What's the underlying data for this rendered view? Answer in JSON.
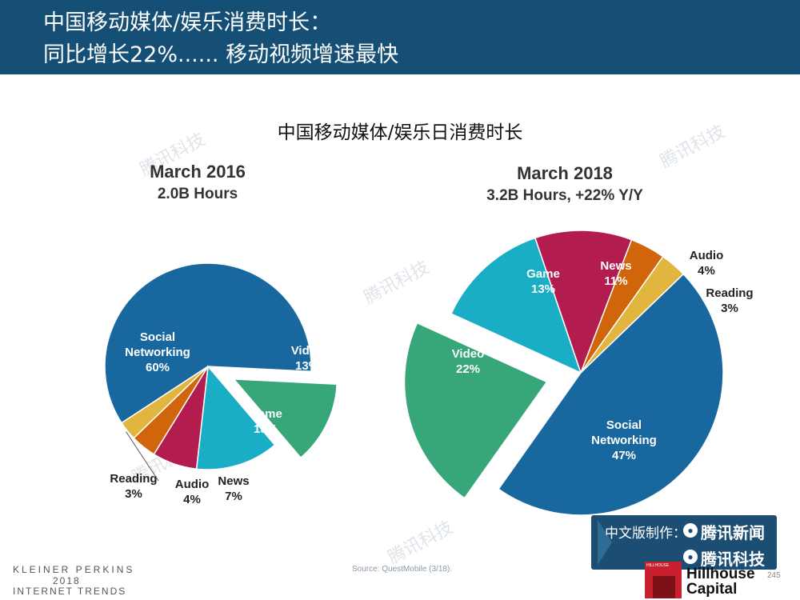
{
  "header": {
    "line1": "中国移动媒体/娱乐消费时长：",
    "line2": "同比增长22%...... 移动视频增速最快"
  },
  "chart_title": "中国移动媒体/娱乐日消费时长",
  "watermark": "腾讯科技",
  "chart_data": [
    {
      "type": "pie",
      "title": "March 2016",
      "subtitle": "2.0B Hours",
      "slices": [
        {
          "name": "Social Networking",
          "name_lines": [
            "Social",
            "Networking"
          ],
          "value": 60,
          "label": "60%",
          "color": "#18689f"
        },
        {
          "name": "Video",
          "name_lines": [
            "Video"
          ],
          "value": 13,
          "label": "13%",
          "color": "#37a678",
          "exploded": true
        },
        {
          "name": "Game",
          "name_lines": [
            "Game"
          ],
          "value": 13,
          "label": "13%",
          "color": "#1aaec6"
        },
        {
          "name": "News",
          "name_lines": [
            "News"
          ],
          "value": 7,
          "label": "7%",
          "color": "#b31c4e"
        },
        {
          "name": "Audio",
          "name_lines": [
            "Audio"
          ],
          "value": 4,
          "label": "4%",
          "color": "#d0650c"
        },
        {
          "name": "Reading",
          "name_lines": [
            "Reading"
          ],
          "value": 3,
          "label": "3%",
          "color": "#e2b53f"
        }
      ]
    },
    {
      "type": "pie",
      "title": "March 2018",
      "subtitle": "3.2B Hours, +22% Y/Y",
      "slices": [
        {
          "name": "Game",
          "name_lines": [
            "Game"
          ],
          "value": 13,
          "label": "13%",
          "color": "#1aaec6"
        },
        {
          "name": "News",
          "name_lines": [
            "News"
          ],
          "value": 11,
          "label": "11%",
          "color": "#b31c4e"
        },
        {
          "name": "Audio",
          "name_lines": [
            "Audio"
          ],
          "value": 4,
          "label": "4%",
          "color": "#d0650c"
        },
        {
          "name": "Reading",
          "name_lines": [
            "Reading"
          ],
          "value": 3,
          "label": "3%",
          "color": "#e2b53f"
        },
        {
          "name": "Social Networking",
          "name_lines": [
            "Social",
            "Networking"
          ],
          "value": 47,
          "label": "47%",
          "color": "#18689f"
        },
        {
          "name": "Video",
          "name_lines": [
            "Video"
          ],
          "value": 22,
          "label": "22%",
          "color": "#37a678",
          "exploded": true
        }
      ]
    }
  ],
  "footer": {
    "brand_line1": "KLEINER PERKINS",
    "brand_line2": "2018",
    "brand_line3": "INTERNET TRENDS",
    "source": "Source: QuestMobile (3/18).",
    "page_number": "245",
    "badge_label": "中文版制作：",
    "badge_brand1": "腾讯新闻",
    "badge_brand2": "腾讯科技",
    "partner_line1": "Hillhouse",
    "partner_line2": "Capital",
    "partner_box_text": "HILLHOUSE"
  }
}
